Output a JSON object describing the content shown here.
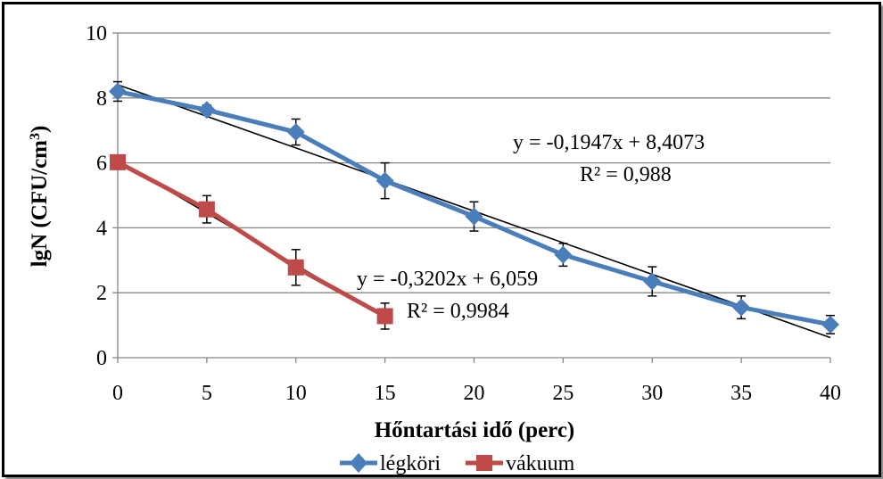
{
  "chart_data": {
    "type": "line",
    "xlabel": "Hőntartási idő (perc)",
    "ylabel": "lgN (CFU/cm",
    "ylabel_sup": "3",
    "ylabel_end": ")",
    "xlim": [
      0,
      40
    ],
    "ylim": [
      0,
      10
    ],
    "x_ticks": [
      0,
      5,
      10,
      15,
      20,
      25,
      30,
      35,
      40
    ],
    "y_ticks": [
      0,
      2,
      4,
      6,
      8,
      10
    ],
    "grid": "horizontal",
    "legend_position": "bottom",
    "series": [
      {
        "name": "légköri",
        "color": "#4a7ebb",
        "marker": "diamond",
        "x": [
          0,
          5,
          10,
          15,
          20,
          25,
          30,
          35,
          40
        ],
        "y": [
          8.2,
          7.63,
          6.95,
          5.45,
          4.35,
          3.17,
          2.35,
          1.55,
          1.02
        ],
        "error": [
          0.3,
          0.15,
          0.4,
          0.55,
          0.45,
          0.35,
          0.45,
          0.35,
          0.28
        ],
        "trendline": {
          "slope": -0.1947,
          "intercept": 8.4073,
          "x_range": [
            0,
            40
          ],
          "equation": "y = -0,1947x + 8,4073",
          "r2": "R² = 0,988"
        }
      },
      {
        "name": "vákuum",
        "color": "#be4b48",
        "marker": "square",
        "x": [
          0,
          5,
          10,
          15
        ],
        "y": [
          6.02,
          4.57,
          2.78,
          1.28
        ],
        "error": [
          0.2,
          0.42,
          0.55,
          0.4
        ],
        "trendline": {
          "slope": -0.3202,
          "intercept": 6.059,
          "x_range": [
            0,
            15
          ],
          "equation": "y = -0,3202x + 6,059",
          "r2": "R² = 0,9984"
        }
      }
    ]
  }
}
